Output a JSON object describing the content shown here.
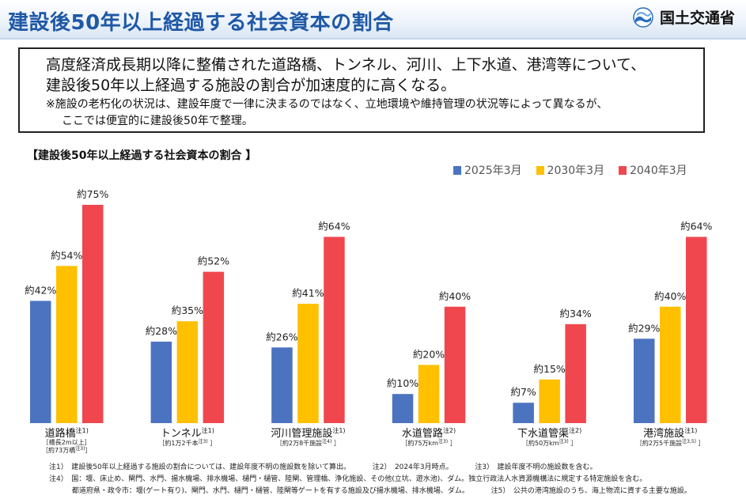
{
  "header": {
    "title": "建設後50年以上経過する社会資本の割合",
    "ministry": "国土交通省"
  },
  "summary": {
    "line1": "高度経済成長期以降に整備された道路橋、トンネル、河川、上下水道、港湾等について、",
    "line2": "建設後50年以上経過する施設の割合が加速度的に高くなる。",
    "note1": "※施設の老朽化の状況は、建設年度で一律に決まるのではなく、立地環境や維持管理の状況等によって異なるが、",
    "note2": "ここでは便宜的に建設後50年で整理。"
  },
  "chart_data": {
    "type": "bar",
    "title": "【建設後50年以上経過する社会資本の割合 】",
    "categories": [
      "道路橋",
      "トンネル",
      "河川管理施設",
      "水道管路",
      "下水道管渠",
      "港湾施設"
    ],
    "category_notes": [
      "注1)",
      "注1)",
      "注1)",
      "注2)",
      "注2)",
      "注1)"
    ],
    "category_subs": [
      [
        "［橋長2m以上］",
        "［約73万橋",
        "注3)",
        "］"
      ],
      [
        "［約1万2千本",
        "注3)",
        "］"
      ],
      [
        "［約2万8千施設",
        "注4)",
        "］"
      ],
      [
        "［約75万km",
        "注3)",
        "］"
      ],
      [
        "［約50万km",
        "注3)",
        "］"
      ],
      [
        "［約2万5千施設",
        "注3,5)",
        "］"
      ]
    ],
    "series": [
      {
        "name": "2025年3月",
        "color": "#4b73c0",
        "values": [
          42,
          28,
          26,
          10,
          7,
          29
        ]
      },
      {
        "name": "2030年3月",
        "color": "#ffc000",
        "values": [
          54,
          35,
          41,
          20,
          15,
          40
        ]
      },
      {
        "name": "2040年3月",
        "color": "#f0474f",
        "values": [
          75,
          52,
          64,
          40,
          34,
          64
        ]
      }
    ],
    "label_prefix": "約",
    "label_suffix": "%",
    "ylim": [
      0,
      100
    ],
    "legend": "top-right",
    "grid": false
  },
  "footnotes": {
    "n1": "注1）　建設後50年以上経過する施設の割合については、建設年度不明の施設数を除いて算出。",
    "n2": "注2）　2024年3月時点。",
    "n3": "注3）　建設年度不明の施設数を含む。",
    "n4": "注4）　国：堰、床止め、閘門、水門、揚水機場、排水機場、樋門・樋管、陸閘、管理橋、浄化施設、その他(立坑、遊水池)、ダム。独立行政法人水資源機構法に規定する特定施設を含む。",
    "n4b": "都道府県・政令市：堰(ゲート有り)、閘門、水門、樋門・樋管、陸閘等ゲートを有する施設及び揚水機場、排水機場、ダム。",
    "n5": "注5）　公共の港湾施設のうち、海上物流に資する主要な施設。"
  }
}
